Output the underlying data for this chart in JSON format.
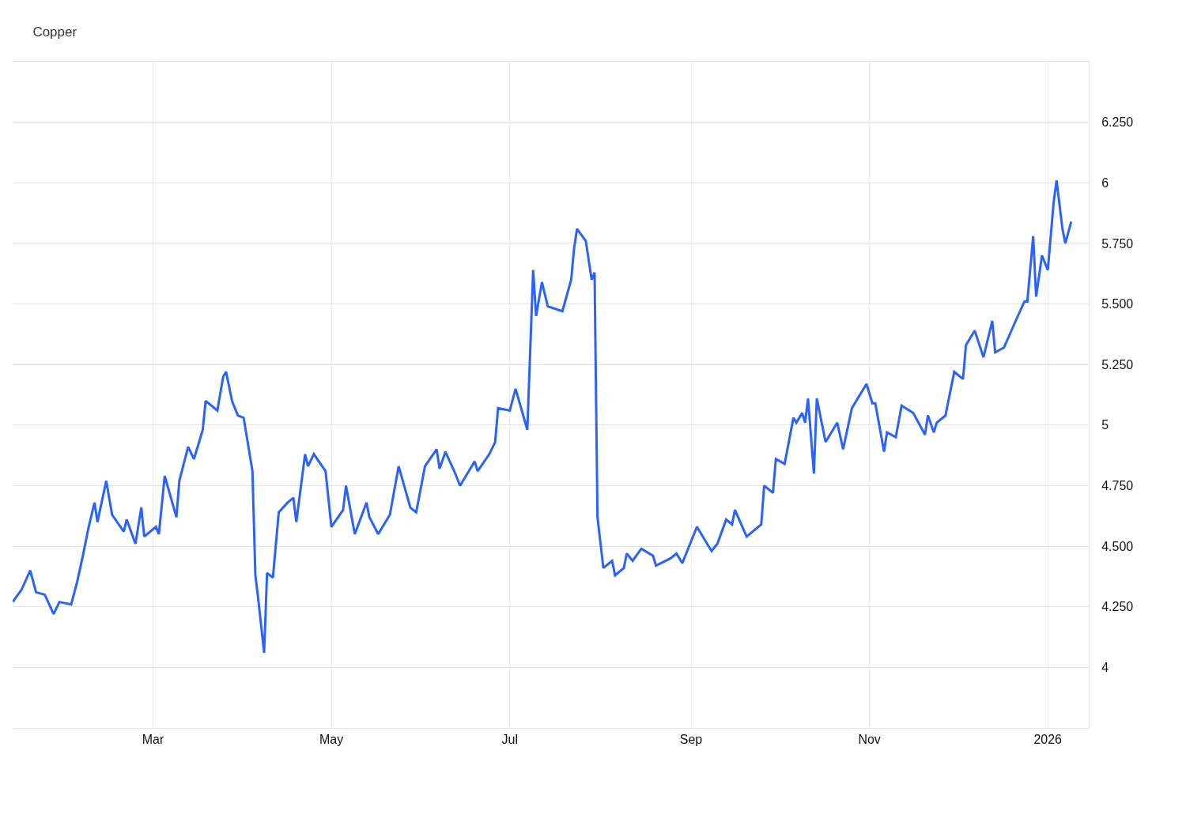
{
  "chart_data": {
    "type": "line",
    "title": "Copper",
    "x": [
      "2025-01-12",
      "2025-01-15",
      "2025-01-18",
      "2025-01-20",
      "2025-01-23",
      "2025-01-26",
      "2025-01-28",
      "2025-02-01",
      "2025-02-03",
      "2025-02-05",
      "2025-02-07",
      "2025-02-09",
      "2025-02-10",
      "2025-02-13",
      "2025-02-15",
      "2025-02-19",
      "2025-02-20",
      "2025-02-23",
      "2025-02-25",
      "2025-02-26",
      "2025-03-02",
      "2025-03-03",
      "2025-03-05",
      "2025-03-09",
      "2025-03-10",
      "2025-03-13",
      "2025-03-15",
      "2025-03-18",
      "2025-03-19",
      "2025-03-23",
      "2025-03-25",
      "2025-03-26",
      "2025-03-28",
      "2025-03-30",
      "2025-04-01",
      "2025-04-04",
      "2025-04-05",
      "2025-04-06",
      "2025-04-08",
      "2025-04-09",
      "2025-04-11",
      "2025-04-13",
      "2025-04-16",
      "2025-04-18",
      "2025-04-19",
      "2025-04-22",
      "2025-04-23",
      "2025-04-25",
      "2025-04-29",
      "2025-05-01",
      "2025-05-05",
      "2025-05-06",
      "2025-05-09",
      "2025-05-13",
      "2025-05-14",
      "2025-05-17",
      "2025-05-21",
      "2025-05-24",
      "2025-05-28",
      "2025-05-30",
      "2025-06-02",
      "2025-06-06",
      "2025-06-07",
      "2025-06-09",
      "2025-06-12",
      "2025-06-14",
      "2025-06-19",
      "2025-06-20",
      "2025-06-24",
      "2025-06-26",
      "2025-06-27",
      "2025-07-01",
      "2025-07-03",
      "2025-07-07",
      "2025-07-09",
      "2025-07-10",
      "2025-07-12",
      "2025-07-14",
      "2025-07-19",
      "2025-07-22",
      "2025-07-23",
      "2025-07-24",
      "2025-07-27",
      "2025-07-29",
      "2025-07-30",
      "2025-07-31",
      "2025-08-02",
      "2025-08-05",
      "2025-08-06",
      "2025-08-09",
      "2025-08-10",
      "2025-08-12",
      "2025-08-15",
      "2025-08-19",
      "2025-08-20",
      "2025-08-25",
      "2025-08-27",
      "2025-08-29",
      "2025-09-01",
      "2025-09-03",
      "2025-09-08",
      "2025-09-10",
      "2025-09-13",
      "2025-09-15",
      "2025-09-16",
      "2025-09-20",
      "2025-09-25",
      "2025-09-26",
      "2025-09-29",
      "2025-09-30",
      "2025-10-03",
      "2025-10-06",
      "2025-10-07",
      "2025-10-09",
      "2025-10-10",
      "2025-10-11",
      "2025-10-13",
      "2025-10-14",
      "2025-10-17",
      "2025-10-21",
      "2025-10-23",
      "2025-10-26",
      "2025-10-31",
      "2025-11-02",
      "2025-11-03",
      "2025-11-06",
      "2025-11-07",
      "2025-11-10",
      "2025-11-12",
      "2025-11-16",
      "2025-11-20",
      "2025-11-21",
      "2025-11-23",
      "2025-11-24",
      "2025-11-27",
      "2025-11-30",
      "2025-12-03",
      "2025-12-04",
      "2025-12-07",
      "2025-12-10",
      "2025-12-13",
      "2025-12-14",
      "2025-12-17",
      "2025-12-21",
      "2025-12-24",
      "2025-12-25",
      "2025-12-27",
      "2025-12-28",
      "2025-12-30",
      "2026-01-01",
      "2026-01-03",
      "2026-01-04",
      "2026-01-06",
      "2026-01-07",
      "2026-01-09"
    ],
    "series": [
      {
        "color": "#2962ff",
        "values": [
          4.27,
          4.32,
          4.4,
          4.31,
          4.3,
          4.22,
          4.27,
          4.26,
          4.35,
          4.46,
          4.58,
          4.68,
          4.6,
          4.77,
          4.63,
          4.56,
          4.61,
          4.51,
          4.66,
          4.54,
          4.58,
          4.55,
          4.79,
          4.62,
          4.77,
          4.91,
          4.86,
          4.98,
          5.1,
          5.06,
          5.2,
          5.22,
          5.1,
          5.04,
          5.03,
          4.81,
          4.38,
          4.28,
          4.06,
          4.39,
          4.37,
          4.64,
          4.68,
          4.7,
          4.6,
          4.88,
          4.83,
          4.88,
          4.81,
          4.58,
          4.65,
          4.75,
          4.55,
          4.68,
          4.62,
          4.55,
          4.63,
          4.83,
          4.66,
          4.64,
          4.83,
          4.9,
          4.82,
          4.89,
          4.81,
          4.75,
          4.85,
          4.81,
          4.88,
          4.93,
          5.07,
          5.06,
          5.15,
          4.98,
          5.64,
          5.45,
          5.59,
          5.49,
          5.47,
          5.6,
          5.73,
          5.81,
          5.76,
          5.6,
          5.63,
          4.62,
          4.41,
          4.44,
          4.38,
          4.41,
          4.47,
          4.44,
          4.49,
          4.46,
          4.42,
          4.45,
          4.47,
          4.43,
          4.52,
          4.58,
          4.48,
          4.51,
          4.61,
          4.59,
          4.65,
          4.54,
          4.59,
          4.75,
          4.72,
          4.86,
          4.84,
          5.03,
          5.01,
          5.05,
          5.01,
          5.11,
          4.8,
          5.11,
          4.93,
          5.01,
          4.9,
          5.07,
          5.17,
          5.09,
          5.09,
          4.89,
          4.97,
          4.95,
          5.08,
          5.05,
          4.96,
          5.04,
          4.97,
          5.01,
          5.04,
          5.22,
          5.19,
          5.33,
          5.39,
          5.28,
          5.43,
          5.3,
          5.32,
          5.43,
          5.51,
          5.51,
          5.78,
          5.53,
          5.7,
          5.64,
          5.92,
          6.01,
          5.81,
          5.75,
          5.84
        ]
      }
    ],
    "xlim": [
      "2025-01-12",
      "2026-01-15"
    ],
    "ylim": [
      3.75,
      6.5
    ],
    "xticks": [
      {
        "value": "2025-03-01",
        "label": "Mar"
      },
      {
        "value": "2025-05-01",
        "label": "May"
      },
      {
        "value": "2025-07-01",
        "label": "Jul"
      },
      {
        "value": "2025-09-01",
        "label": "Sep"
      },
      {
        "value": "2025-11-01",
        "label": "Nov"
      },
      {
        "value": "2026-01-01",
        "label": "2026"
      }
    ],
    "yticks": [
      4,
      {
        "value": 4.25,
        "label": "4.250"
      },
      {
        "value": 4.5,
        "label": "4.500"
      },
      {
        "value": 4.75,
        "label": "4.750"
      },
      5,
      {
        "value": 5.25,
        "label": "5.250"
      },
      {
        "value": 5.5,
        "label": "5.500"
      },
      {
        "value": 5.75,
        "label": "5.750"
      },
      6,
      {
        "value": 6.25,
        "label": "6.250"
      }
    ],
    "grid": true
  }
}
